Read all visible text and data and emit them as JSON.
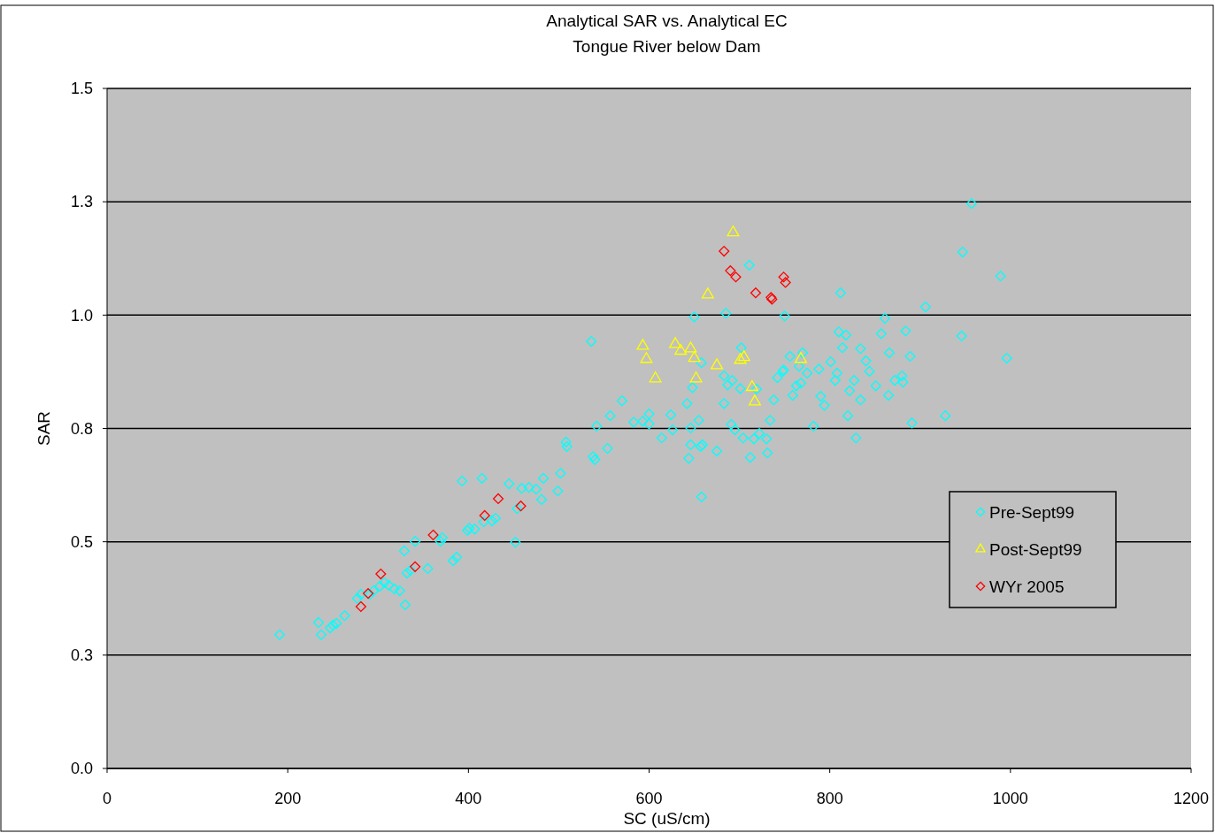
{
  "chart_data": {
    "type": "scatter",
    "title": "Analytical SAR vs. Analytical EC",
    "subtitle": "Tongue River below Dam",
    "xlabel": "SC (uS/cm)",
    "ylabel": "SAR",
    "xlim": [
      0,
      1200
    ],
    "xticks": [
      0,
      200,
      400,
      600,
      800,
      1000,
      1200
    ],
    "ylim": [
      0,
      1.5
    ],
    "yticks": [
      {
        "value": 0,
        "label": "0.0"
      },
      {
        "value": 0.25,
        "label": "0.3"
      },
      {
        "value": 0.5,
        "label": "0.5"
      },
      {
        "value": 0.75,
        "label": "0.8"
      },
      {
        "value": 1,
        "label": "1.0"
      },
      {
        "value": 1.25,
        "label": "1.3"
      },
      {
        "value": 1.5,
        "label": "1.5"
      }
    ],
    "grid": "y",
    "legend": "right",
    "marker": "diamond",
    "series": [
      {
        "name": "Pre-Sept99",
        "color": "#00ffff",
        "x": [
          191,
          234,
          237,
          247,
          250,
          254,
          263,
          277,
          281,
          291,
          295,
          302,
          307,
          312,
          318,
          324,
          330,
          329,
          332,
          336,
          341,
          355,
          369,
          371,
          383,
          387,
          393,
          399,
          401,
          407,
          415,
          417,
          426,
          430,
          445,
          452,
          454,
          459,
          467,
          475,
          481,
          483,
          499,
          502,
          509,
          536,
          538,
          540,
          542,
          554,
          570,
          583,
          593,
          600,
          614,
          624,
          642,
          644,
          646,
          648,
          650,
          658,
          655,
          657,
          659,
          683,
          687,
          685,
          692,
          695,
          701,
          704,
          702,
          711,
          712,
          716,
          722,
          730,
          731,
          734,
          738,
          742,
          748,
          750,
          756,
          759,
          768,
          770,
          775,
          782,
          788,
          794,
          801,
          806,
          810,
          812,
          814,
          818,
          820,
          822,
          827,
          829,
          834,
          834,
          840,
          844,
          851,
          861,
          865,
          866,
          881,
          884,
          889,
          891,
          906,
          928,
          946,
          947,
          957,
          989,
          996,
          857,
          880,
          872,
          808,
          790,
          766,
          763,
          749,
          600,
          683,
          626,
          646,
          675,
          691,
          719,
          557,
          508,
          658
        ],
        "values": [
          0.295,
          0.322,
          0.295,
          0.31,
          0.316,
          0.32,
          0.337,
          0.375,
          0.384,
          0.384,
          0.392,
          0.402,
          0.41,
          0.404,
          0.396,
          0.392,
          0.361,
          0.48,
          0.431,
          0.437,
          0.501,
          0.441,
          0.501,
          0.509,
          0.458,
          0.466,
          0.634,
          0.525,
          0.53,
          0.528,
          0.64,
          0.544,
          0.546,
          0.552,
          0.628,
          0.499,
          0.573,
          0.618,
          0.62,
          0.616,
          0.593,
          0.64,
          0.612,
          0.651,
          0.71,
          0.942,
          0.688,
          0.681,
          0.755,
          0.706,
          0.811,
          0.764,
          0.766,
          0.782,
          0.729,
          0.78,
          0.805,
          0.684,
          0.751,
          0.84,
          0.996,
          0.895,
          0.768,
          0.71,
          0.714,
          0.805,
          0.846,
          1.004,
          0.856,
          0.747,
          0.838,
          0.729,
          0.928,
          1.11,
          0.686,
          0.727,
          0.739,
          0.727,
          0.696,
          0.768,
          0.813,
          0.862,
          0.876,
          0.998,
          0.909,
          0.823,
          0.85,
          0.917,
          0.872,
          0.755,
          0.881,
          0.801,
          0.897,
          0.856,
          0.963,
          1.049,
          0.928,
          0.956,
          0.778,
          0.833,
          0.856,
          0.729,
          0.813,
          0.926,
          0.899,
          0.876,
          0.844,
          0.993,
          0.823,
          0.917,
          0.852,
          0.965,
          0.909,
          0.762,
          1.018,
          0.778,
          0.954,
          1.139,
          1.246,
          1.086,
          0.905,
          0.959,
          0.866,
          0.856,
          0.872,
          0.821,
          0.887,
          0.844,
          0.879,
          0.76,
          0.866,
          0.747,
          0.714,
          0.7,
          0.759,
          0.837,
          0.778,
          0.72,
          0.599
        ]
      },
      {
        "name": "Post-Sept99",
        "color": "#ffff00",
        "marker": "triangle",
        "x": [
          693,
          665,
          593,
          629,
          635,
          646,
          597,
          650,
          607,
          652,
          675,
          701,
          705,
          768,
          714,
          717
        ],
        "values": [
          1.182,
          1.045,
          0.932,
          0.936,
          0.921,
          0.926,
          0.903,
          0.905,
          0.86,
          0.86,
          0.889,
          0.901,
          0.907,
          0.903,
          0.841,
          0.809
        ]
      },
      {
        "name": "WYr 2005",
        "color": "#ff0000",
        "x": [
          281,
          289,
          303,
          341,
          361,
          418,
          433,
          458,
          683,
          690,
          696,
          718,
          735,
          736,
          749,
          751
        ],
        "values": [
          0.357,
          0.386,
          0.429,
          0.445,
          0.515,
          0.558,
          0.595,
          0.579,
          1.141,
          1.098,
          1.084,
          1.049,
          1.039,
          1.035,
          1.084,
          1.072
        ]
      }
    ]
  }
}
